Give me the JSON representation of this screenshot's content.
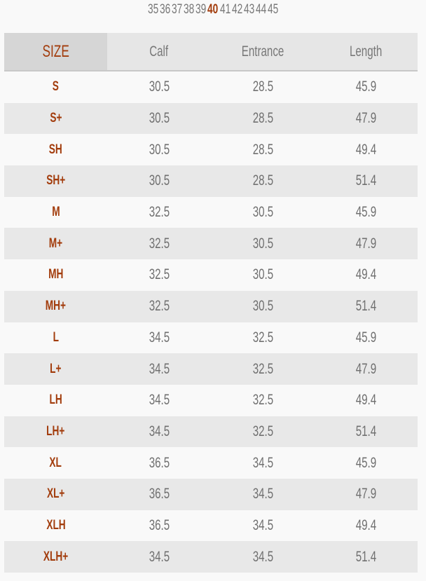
{
  "size_selector": {
    "options": [
      "35",
      "36",
      "37",
      "38",
      "39",
      "40",
      "41",
      "42",
      "43",
      "44",
      "45"
    ],
    "selected": "40",
    "accent_color": "#a23c0c"
  },
  "table": {
    "headers": {
      "size": "SIZE",
      "calf": "Calf",
      "entrance": "Entrance",
      "length": "Length"
    },
    "rows": [
      {
        "size": "S",
        "calf": "30.5",
        "entrance": "28.5",
        "length": "45.9"
      },
      {
        "size": "S+",
        "calf": "30.5",
        "entrance": "28.5",
        "length": "47.9"
      },
      {
        "size": "SH",
        "calf": "30.5",
        "entrance": "28.5",
        "length": "49.4"
      },
      {
        "size": "SH+",
        "calf": "30.5",
        "entrance": "28.5",
        "length": "51.4"
      },
      {
        "size": "M",
        "calf": "32.5",
        "entrance": "30.5",
        "length": "45.9"
      },
      {
        "size": "M+",
        "calf": "32.5",
        "entrance": "30.5",
        "length": "47.9"
      },
      {
        "size": "MH",
        "calf": "32.5",
        "entrance": "30.5",
        "length": "49.4"
      },
      {
        "size": "MH+",
        "calf": "32.5",
        "entrance": "30.5",
        "length": "51.4"
      },
      {
        "size": "L",
        "calf": "34.5",
        "entrance": "32.5",
        "length": "45.9"
      },
      {
        "size": "L+",
        "calf": "34.5",
        "entrance": "32.5",
        "length": "47.9"
      },
      {
        "size": "LH",
        "calf": "34.5",
        "entrance": "32.5",
        "length": "49.4"
      },
      {
        "size": "LH+",
        "calf": "34.5",
        "entrance": "32.5",
        "length": "51.4"
      },
      {
        "size": "XL",
        "calf": "36.5",
        "entrance": "34.5",
        "length": "45.9"
      },
      {
        "size": "XL+",
        "calf": "36.5",
        "entrance": "34.5",
        "length": "47.9"
      },
      {
        "size": "XLH",
        "calf": "36.5",
        "entrance": "34.5",
        "length": "49.4"
      },
      {
        "size": "XLH+",
        "calf": "34.5",
        "entrance": "34.5",
        "length": "51.4"
      }
    ]
  }
}
